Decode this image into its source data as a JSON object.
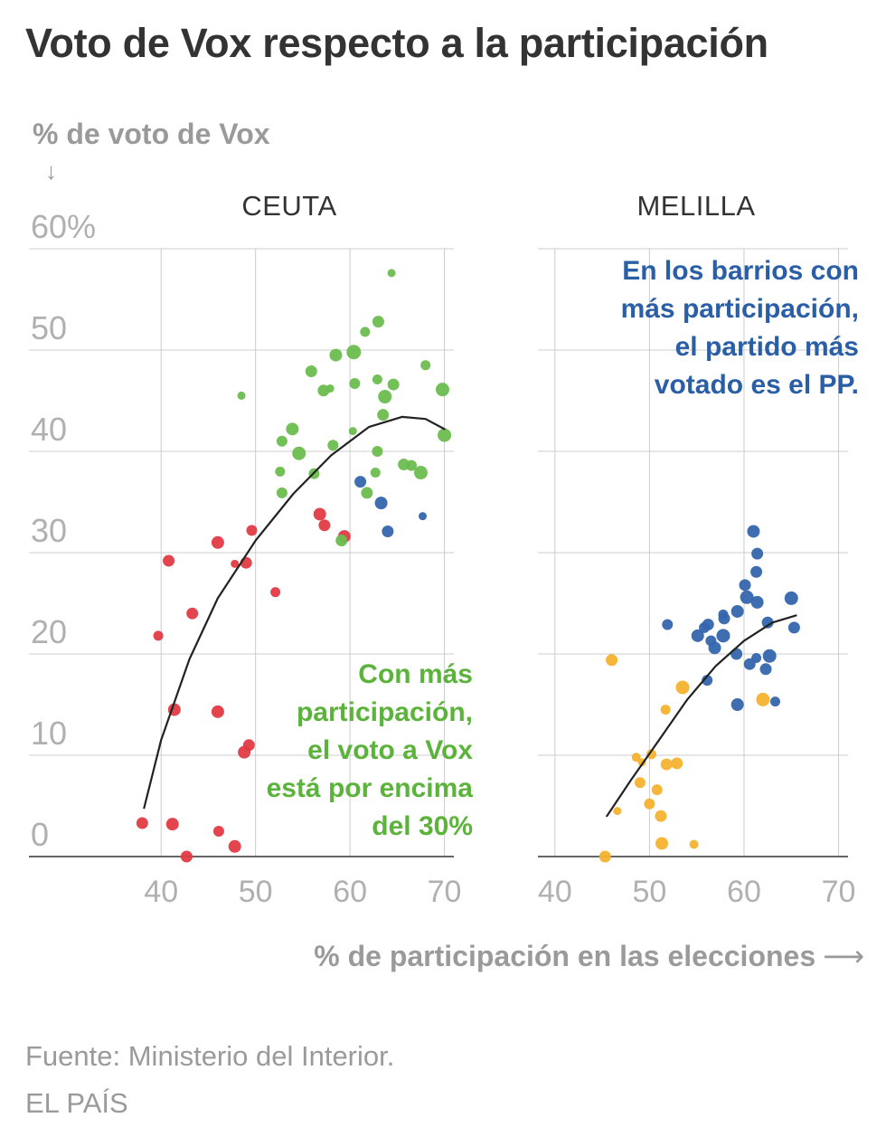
{
  "title": "Voto de Vox respecto a la participación",
  "footer": {
    "source": "Fuente: Ministerio del Interior.",
    "brand": "EL PAÍS"
  },
  "colors": {
    "green": "#6cbd4f",
    "red": "#e23b44",
    "blue": "#3565ad",
    "orange": "#f4b22e",
    "grid": "#cccccc",
    "axis": "#333333",
    "tick": "#b0b0b0",
    "green_text": "#5bb33b",
    "blue_text": "#2a5ea6"
  },
  "chart_data": {
    "type": "scatter",
    "ylabel": "% de voto de Vox",
    "xlabel": "% de participación en las elecciones",
    "y_arrow": "↓",
    "x_arrow": "⟶",
    "ylim": [
      0,
      60
    ],
    "y_ticks": [
      0,
      10,
      20,
      30,
      40,
      50,
      60
    ],
    "y_tick_labels": [
      "0",
      "10",
      "20",
      "30",
      "40",
      "50",
      "60%"
    ],
    "panels": [
      {
        "name": "CEUTA",
        "xlim": [
          26,
          71
        ],
        "x_ticks": [
          40,
          50,
          60,
          70
        ],
        "x_tick_labels": [
          "40",
          "50",
          "60",
          "70"
        ],
        "annotation": {
          "lines": [
            "Con más",
            "participación,",
            "el voto a Vox",
            "está por encima",
            "del 30%"
          ],
          "color": "green_text"
        },
        "trend": [
          [
            38.2,
            4.8
          ],
          [
            40,
            11.5
          ],
          [
            43,
            19.5
          ],
          [
            46,
            25.5
          ],
          [
            50,
            31.2
          ],
          [
            54,
            35.8
          ],
          [
            58,
            39.6
          ],
          [
            62,
            42.4
          ],
          [
            65.5,
            43.4
          ],
          [
            68,
            43.2
          ],
          [
            70,
            42.2
          ]
        ],
        "points": [
          {
            "x": 64.4,
            "y": 57.6,
            "c": "green",
            "s": 4.5
          },
          {
            "x": 63.0,
            "y": 52.8,
            "c": "green",
            "s": 6.5
          },
          {
            "x": 61.6,
            "y": 51.8,
            "c": "green",
            "s": 5.5
          },
          {
            "x": 60.4,
            "y": 49.8,
            "c": "green",
            "s": 8
          },
          {
            "x": 58.5,
            "y": 49.5,
            "c": "green",
            "s": 7
          },
          {
            "x": 68.0,
            "y": 48.5,
            "c": "green",
            "s": 5.5
          },
          {
            "x": 55.9,
            "y": 47.9,
            "c": "green",
            "s": 6.5
          },
          {
            "x": 62.9,
            "y": 47.1,
            "c": "green",
            "s": 5.5
          },
          {
            "x": 60.5,
            "y": 46.7,
            "c": "green",
            "s": 6
          },
          {
            "x": 64.6,
            "y": 46.6,
            "c": "green",
            "s": 6.5
          },
          {
            "x": 57.9,
            "y": 46.2,
            "c": "green",
            "s": 4.5
          },
          {
            "x": 57.2,
            "y": 46.0,
            "c": "green",
            "s": 6.5
          },
          {
            "x": 69.8,
            "y": 46.1,
            "c": "green",
            "s": 7.5
          },
          {
            "x": 48.5,
            "y": 45.5,
            "c": "green",
            "s": 4.5
          },
          {
            "x": 63.7,
            "y": 45.4,
            "c": "green",
            "s": 7.5
          },
          {
            "x": 63.5,
            "y": 43.6,
            "c": "green",
            "s": 6.5
          },
          {
            "x": 53.9,
            "y": 42.2,
            "c": "green",
            "s": 7
          },
          {
            "x": 60.3,
            "y": 42.0,
            "c": "green",
            "s": 4.5
          },
          {
            "x": 52.8,
            "y": 41.0,
            "c": "green",
            "s": 6
          },
          {
            "x": 70.0,
            "y": 41.6,
            "c": "green",
            "s": 7.5
          },
          {
            "x": 58.2,
            "y": 40.6,
            "c": "green",
            "s": 6
          },
          {
            "x": 54.6,
            "y": 39.8,
            "c": "green",
            "s": 7.5
          },
          {
            "x": 62.9,
            "y": 40.0,
            "c": "green",
            "s": 6
          },
          {
            "x": 65.7,
            "y": 38.7,
            "c": "green",
            "s": 6.5
          },
          {
            "x": 66.5,
            "y": 38.6,
            "c": "green",
            "s": 6
          },
          {
            "x": 52.6,
            "y": 38.0,
            "c": "green",
            "s": 5.5
          },
          {
            "x": 56.2,
            "y": 37.8,
            "c": "green",
            "s": 6
          },
          {
            "x": 62.7,
            "y": 37.9,
            "c": "green",
            "s": 5.5
          },
          {
            "x": 67.5,
            "y": 37.9,
            "c": "green",
            "s": 7.5
          },
          {
            "x": 61.1,
            "y": 37.0,
            "c": "blue",
            "s": 6.5
          },
          {
            "x": 52.8,
            "y": 35.9,
            "c": "green",
            "s": 6
          },
          {
            "x": 61.8,
            "y": 35.9,
            "c": "green",
            "s": 6.5
          },
          {
            "x": 63.3,
            "y": 34.9,
            "c": "blue",
            "s": 7
          },
          {
            "x": 67.7,
            "y": 33.6,
            "c": "blue",
            "s": 4.5
          },
          {
            "x": 56.8,
            "y": 33.8,
            "c": "red",
            "s": 7
          },
          {
            "x": 57.3,
            "y": 32.7,
            "c": "red",
            "s": 6.5
          },
          {
            "x": 49.6,
            "y": 32.2,
            "c": "red",
            "s": 6
          },
          {
            "x": 64.0,
            "y": 32.1,
            "c": "blue",
            "s": 6.5
          },
          {
            "x": 59.4,
            "y": 31.6,
            "c": "red",
            "s": 7
          },
          {
            "x": 59.1,
            "y": 31.2,
            "c": "green",
            "s": 6.5
          },
          {
            "x": 46.0,
            "y": 31.0,
            "c": "red",
            "s": 7
          },
          {
            "x": 40.8,
            "y": 29.2,
            "c": "red",
            "s": 6.5
          },
          {
            "x": 49.0,
            "y": 29.0,
            "c": "red",
            "s": 6.5
          },
          {
            "x": 47.8,
            "y": 28.9,
            "c": "red",
            "s": 4.5
          },
          {
            "x": 52.1,
            "y": 26.1,
            "c": "red",
            "s": 5.5
          },
          {
            "x": 43.3,
            "y": 24.0,
            "c": "red",
            "s": 6.5
          },
          {
            "x": 39.7,
            "y": 21.8,
            "c": "red",
            "s": 5.5
          },
          {
            "x": 41.4,
            "y": 14.5,
            "c": "red",
            "s": 7
          },
          {
            "x": 46.0,
            "y": 14.3,
            "c": "red",
            "s": 7
          },
          {
            "x": 49.3,
            "y": 11.0,
            "c": "red",
            "s": 6.5
          },
          {
            "x": 48.8,
            "y": 10.3,
            "c": "red",
            "s": 7
          },
          {
            "x": 38.0,
            "y": 3.3,
            "c": "red",
            "s": 6.5
          },
          {
            "x": 41.2,
            "y": 3.2,
            "c": "red",
            "s": 7
          },
          {
            "x": 46.1,
            "y": 2.5,
            "c": "red",
            "s": 6
          },
          {
            "x": 47.8,
            "y": 1.0,
            "c": "red",
            "s": 7
          },
          {
            "x": 42.7,
            "y": 0.0,
            "c": "red",
            "s": 6.5
          }
        ]
      },
      {
        "name": "MELILLA",
        "xlim": [
          38.2,
          71
        ],
        "x_ticks": [
          40,
          50,
          60,
          70
        ],
        "x_tick_labels": [
          "40",
          "50",
          "60",
          "70"
        ],
        "annotation": {
          "lines": [
            "En los barrios con",
            "más participación,",
            "el partido más",
            "votado es el PP."
          ],
          "color": "blue_text"
        },
        "trend": [
          [
            45.5,
            4.0
          ],
          [
            48,
            7.5
          ],
          [
            51,
            11.5
          ],
          [
            54,
            15.5
          ],
          [
            57,
            18.8
          ],
          [
            60,
            21.3
          ],
          [
            63,
            23.1
          ],
          [
            65.5,
            23.8
          ]
        ],
        "points": [
          {
            "x": 61.0,
            "y": 32.1,
            "c": "blue",
            "s": 7
          },
          {
            "x": 61.4,
            "y": 29.9,
            "c": "blue",
            "s": 6.5
          },
          {
            "x": 61.3,
            "y": 28.1,
            "c": "blue",
            "s": 6.5
          },
          {
            "x": 60.1,
            "y": 26.8,
            "c": "blue",
            "s": 6.5
          },
          {
            "x": 60.3,
            "y": 25.6,
            "c": "blue",
            "s": 7.5
          },
          {
            "x": 61.4,
            "y": 25.1,
            "c": "blue",
            "s": 7
          },
          {
            "x": 65.0,
            "y": 25.5,
            "c": "blue",
            "s": 7.5
          },
          {
            "x": 59.3,
            "y": 24.2,
            "c": "blue",
            "s": 7
          },
          {
            "x": 57.8,
            "y": 23.9,
            "c": "blue",
            "s": 5.5
          },
          {
            "x": 57.9,
            "y": 23.5,
            "c": "blue",
            "s": 6.5
          },
          {
            "x": 62.5,
            "y": 23.1,
            "c": "blue",
            "s": 6.5
          },
          {
            "x": 51.9,
            "y": 22.9,
            "c": "blue",
            "s": 6
          },
          {
            "x": 55.8,
            "y": 22.6,
            "c": "blue",
            "s": 6
          },
          {
            "x": 56.2,
            "y": 22.9,
            "c": "blue",
            "s": 6.5
          },
          {
            "x": 65.3,
            "y": 22.6,
            "c": "blue",
            "s": 6.5
          },
          {
            "x": 55.1,
            "y": 21.8,
            "c": "blue",
            "s": 7
          },
          {
            "x": 57.8,
            "y": 21.8,
            "c": "blue",
            "s": 7.5
          },
          {
            "x": 56.5,
            "y": 21.3,
            "c": "blue",
            "s": 6
          },
          {
            "x": 56.9,
            "y": 20.6,
            "c": "blue",
            "s": 7
          },
          {
            "x": 59.2,
            "y": 20.0,
            "c": "blue",
            "s": 6.5
          },
          {
            "x": 62.7,
            "y": 19.8,
            "c": "blue",
            "s": 7.5
          },
          {
            "x": 61.3,
            "y": 19.6,
            "c": "blue",
            "s": 5.5
          },
          {
            "x": 60.6,
            "y": 19.0,
            "c": "blue",
            "s": 6.5
          },
          {
            "x": 62.3,
            "y": 18.5,
            "c": "blue",
            "s": 6.5
          },
          {
            "x": 56.1,
            "y": 17.4,
            "c": "blue",
            "s": 6
          },
          {
            "x": 59.3,
            "y": 15.0,
            "c": "blue",
            "s": 7
          },
          {
            "x": 63.3,
            "y": 15.3,
            "c": "blue",
            "s": 5.5
          },
          {
            "x": 46.0,
            "y": 19.4,
            "c": "orange",
            "s": 6.5
          },
          {
            "x": 53.5,
            "y": 16.7,
            "c": "orange",
            "s": 7.5
          },
          {
            "x": 62.0,
            "y": 15.5,
            "c": "orange",
            "s": 7.5
          },
          {
            "x": 51.7,
            "y": 14.5,
            "c": "orange",
            "s": 5.5
          },
          {
            "x": 50.2,
            "y": 10.1,
            "c": "orange",
            "s": 5.5
          },
          {
            "x": 48.6,
            "y": 9.8,
            "c": "orange",
            "s": 5
          },
          {
            "x": 49.2,
            "y": 9.3,
            "c": "orange",
            "s": 4.5
          },
          {
            "x": 51.8,
            "y": 9.1,
            "c": "orange",
            "s": 6.5
          },
          {
            "x": 52.9,
            "y": 9.2,
            "c": "orange",
            "s": 6.5
          },
          {
            "x": 49.0,
            "y": 7.3,
            "c": "orange",
            "s": 6
          },
          {
            "x": 50.8,
            "y": 6.6,
            "c": "orange",
            "s": 6
          },
          {
            "x": 50.0,
            "y": 5.2,
            "c": "orange",
            "s": 6
          },
          {
            "x": 46.6,
            "y": 4.5,
            "c": "orange",
            "s": 4.5
          },
          {
            "x": 51.2,
            "y": 4.0,
            "c": "orange",
            "s": 6.5
          },
          {
            "x": 51.3,
            "y": 1.3,
            "c": "orange",
            "s": 7
          },
          {
            "x": 54.7,
            "y": 1.2,
            "c": "orange",
            "s": 5
          },
          {
            "x": 45.3,
            "y": 0.0,
            "c": "orange",
            "s": 6.5
          }
        ]
      }
    ]
  }
}
